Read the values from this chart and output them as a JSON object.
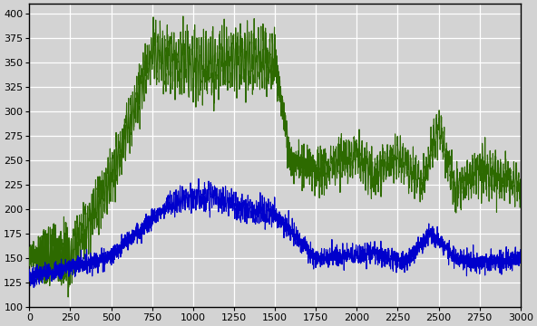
{
  "xlim": [
    0,
    3000
  ],
  "ylim": [
    100,
    410
  ],
  "xticks": [
    0,
    250,
    500,
    750,
    1000,
    1250,
    1500,
    1750,
    2000,
    2250,
    2500,
    2750,
    3000
  ],
  "yticks": [
    100,
    125,
    150,
    175,
    200,
    225,
    250,
    275,
    300,
    325,
    350,
    375,
    400
  ],
  "background_color": "#d3d3d3",
  "grid_color": "#ffffff",
  "green_color": "#2d6a00",
  "blue_color": "#0000cc",
  "linewidth": 0.8
}
